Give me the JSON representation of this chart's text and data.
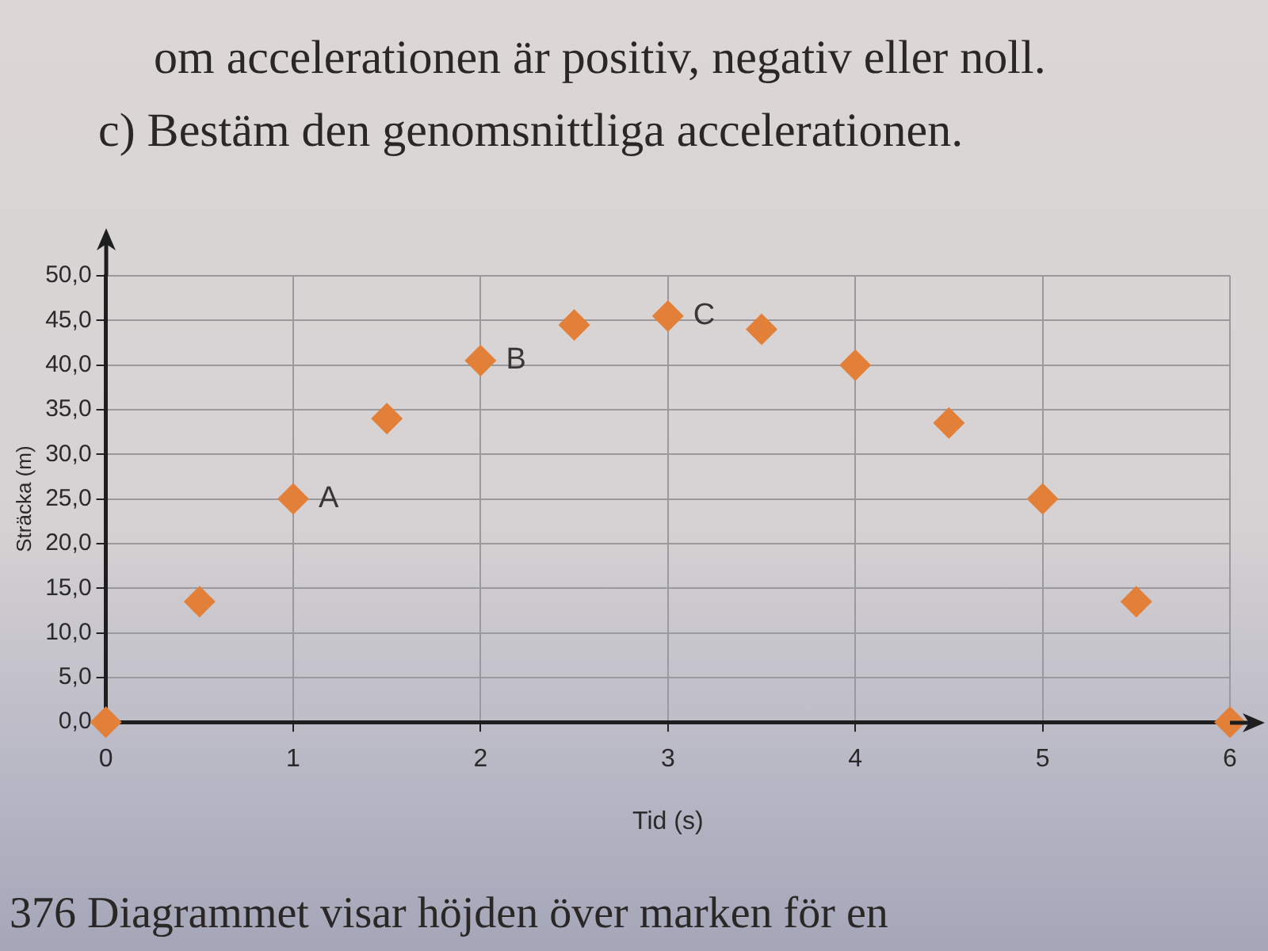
{
  "chart_data": {
    "type": "scatter",
    "xlabel": "Tid (s)",
    "ylabel": "Sträcka (m)",
    "x": [
      0,
      0.5,
      1,
      1.5,
      2,
      2.5,
      3,
      3.5,
      4,
      4.5,
      5,
      5.5,
      6
    ],
    "values": [
      0,
      13.5,
      25,
      34,
      40.5,
      44.5,
      45.5,
      44,
      40,
      33.5,
      25,
      13.5,
      0
    ],
    "color": "#e2803a",
    "marker": "diamond",
    "xlim": [
      0,
      6
    ],
    "ylim": [
      0,
      50
    ],
    "xticks": [
      0,
      1,
      2,
      3,
      4,
      5,
      6
    ],
    "yticks": [
      {
        "value": 0,
        "label": "0,0"
      },
      {
        "value": 5,
        "label": "5,0"
      },
      {
        "value": 10,
        "label": "10,0"
      },
      {
        "value": 15,
        "label": "15,0"
      },
      {
        "value": 20,
        "label": "20,0"
      },
      {
        "value": 25,
        "label": "25,0"
      },
      {
        "value": 30,
        "label": "30,0"
      },
      {
        "value": 35,
        "label": "35,0"
      },
      {
        "value": 40,
        "label": "40,0"
      },
      {
        "value": 45,
        "label": "45,0"
      },
      {
        "value": 50,
        "label": "50,0"
      }
    ],
    "grid": true,
    "annotations": [
      "om accelerationen är positiv, negativ eller noll.",
      "c) Bestäm den genomsnittliga accelerationen.",
      {
        "text": "A",
        "x": 1,
        "y": 25
      },
      {
        "text": "B",
        "x": 2,
        "y": 40.5
      },
      {
        "text": "C",
        "x": 3,
        "y": 45.5
      },
      "376 Diagrammet visar höjden över marken för en"
    ]
  }
}
